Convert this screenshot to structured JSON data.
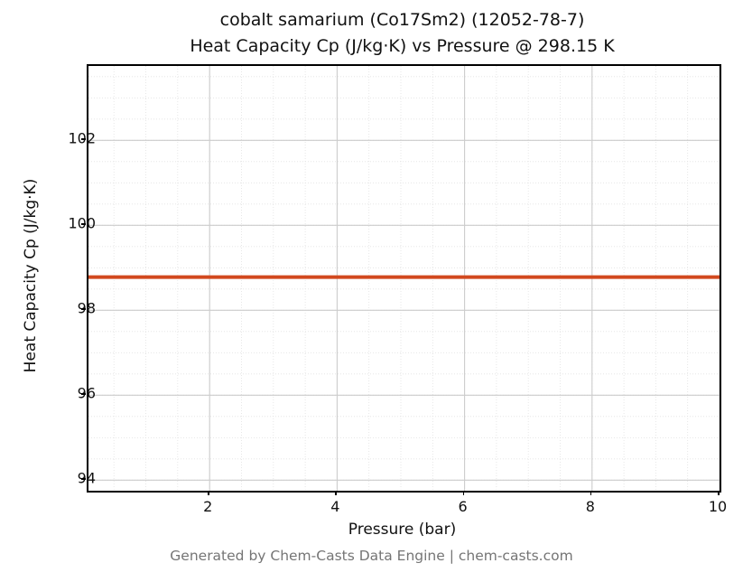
{
  "title": {
    "line1": "cobalt samarium (Co17Sm2) (12052-78-7)",
    "line2": "Heat Capacity Cp (J/kg·K) vs Pressure @ 298.15 K"
  },
  "footer": "Generated by Chem-Casts Data Engine | chem-casts.com",
  "colors": {
    "line": "#d2491e",
    "major_grid": "#cccccc",
    "minor_grid": "#e2e2e2",
    "spine": "#000000",
    "footer_text": "#757575"
  },
  "chart_data": {
    "type": "line",
    "title": "cobalt samarium (Co17Sm2) (12052-78-7) Heat Capacity Cp (J/kg·K) vs Pressure @ 298.15 K",
    "xlabel": "Pressure (bar)",
    "ylabel": "Heat Capacity Cp (J/kg·K)",
    "xlim": [
      0.1,
      10
    ],
    "ylim": [
      93.75,
      103.75
    ],
    "xticks": [
      2,
      4,
      6,
      8,
      10
    ],
    "yticks": [
      94,
      96,
      98,
      100,
      102
    ],
    "minor_step_x": 0.5,
    "minor_step_y": 0.5,
    "grid": true,
    "minor_grid": true,
    "legend": "none",
    "series": [
      {
        "name": "Heat Capacity Cp",
        "color": "#d2491e",
        "x": [
          0.1,
          10
        ],
        "y": [
          98.78,
          98.78
        ]
      }
    ]
  }
}
